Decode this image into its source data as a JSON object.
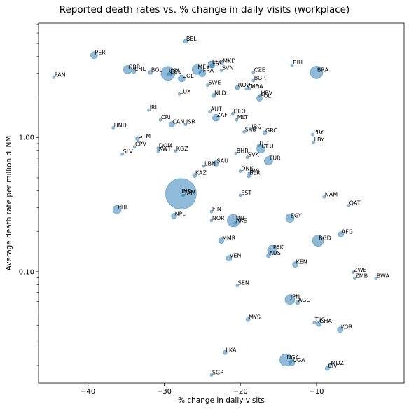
{
  "chart_data": {
    "type": "scatter",
    "title": "Reported death rates vs. % change in daily visits  (workplace)",
    "xlabel": "% change in daily visits",
    "ylabel": "Average death rate per million d_NM",
    "x_scale": "linear",
    "y_scale": "log",
    "xlim": [
      -46.5,
      1.5
    ],
    "ylim": [
      0.0148,
      7.1
    ],
    "x_ticks": [
      -40,
      -30,
      -20,
      -10
    ],
    "x_tick_labels": [
      "−40",
      "−30",
      "−20",
      "−10"
    ],
    "y_ticks": [
      1.0,
      0.1
    ],
    "y_tick_labels": [
      "1.00",
      "0.10"
    ],
    "marker_color": "#1f77b4",
    "points": [
      {
        "label": "BEL",
        "x": -27.2,
        "y": 5.2,
        "size": 3
      },
      {
        "label": "PER",
        "x": -39.2,
        "y": 4.1,
        "size": 5
      },
      {
        "label": "PAN",
        "x": -44.5,
        "y": 2.8,
        "size": 2
      },
      {
        "label": "GBR",
        "x": -34.8,
        "y": 3.2,
        "size": 6
      },
      {
        "label": "CHL",
        "x": -34.0,
        "y": 3.1,
        "size": 3
      },
      {
        "label": "BOL",
        "x": -31.8,
        "y": 3.05,
        "size": 3
      },
      {
        "label": "USA",
        "x": -29.5,
        "y": 3.0,
        "size": 10
      },
      {
        "label": "ECU",
        "x": -29.3,
        "y": 2.95,
        "size": 3
      },
      {
        "label": "COL",
        "x": -27.7,
        "y": 2.75,
        "size": 5
      },
      {
        "label": "MEX",
        "x": -25.7,
        "y": 3.2,
        "size": 7
      },
      {
        "label": "FRA",
        "x": -25.0,
        "y": 3.0,
        "size": 5
      },
      {
        "label": "ESP",
        "x": -23.8,
        "y": 3.5,
        "size": 5
      },
      {
        "label": "ITA",
        "x": -23.7,
        "y": 3.4,
        "size": 3
      },
      {
        "label": "MKD",
        "x": -22.4,
        "y": 3.55,
        "size": 2
      },
      {
        "label": "SVN",
        "x": -22.5,
        "y": 3.15,
        "size": 2
      },
      {
        "label": "SWE",
        "x": -24.3,
        "y": 2.45,
        "size": 2
      },
      {
        "label": "CZE",
        "x": -18.3,
        "y": 3.05,
        "size": 2
      },
      {
        "label": "BGR",
        "x": -18.3,
        "y": 2.65,
        "size": 2
      },
      {
        "label": "ROU",
        "x": -20.4,
        "y": 2.35,
        "size": 3
      },
      {
        "label": "CHE",
        "x": -19.2,
        "y": 2.3,
        "size": 2
      },
      {
        "label": "MDA",
        "x": -18.8,
        "y": 2.3,
        "size": 2
      },
      {
        "label": "HRV",
        "x": -17.4,
        "y": 2.05,
        "size": 2
      },
      {
        "label": "POL",
        "x": -17.5,
        "y": 1.95,
        "size": 4
      },
      {
        "label": "BIH",
        "x": -13.2,
        "y": 3.45,
        "size": 2
      },
      {
        "label": "BRA",
        "x": -10.0,
        "y": 3.05,
        "size": 9
      },
      {
        "label": "LUX",
        "x": -28.0,
        "y": 2.1,
        "size": 2
      },
      {
        "label": "NLD",
        "x": -23.5,
        "y": 2.05,
        "size": 3
      },
      {
        "label": "IRL",
        "x": -32.0,
        "y": 1.6,
        "size": 2
      },
      {
        "label": "AUT",
        "x": -24.0,
        "y": 1.55,
        "size": 2
      },
      {
        "label": "GEO",
        "x": -21.0,
        "y": 1.5,
        "size": 2
      },
      {
        "label": "ZAF",
        "x": -23.2,
        "y": 1.4,
        "size": 5
      },
      {
        "label": "MLT",
        "x": -20.5,
        "y": 1.35,
        "size": 2
      },
      {
        "label": "CRI",
        "x": -30.5,
        "y": 1.35,
        "size": 2
      },
      {
        "label": "CAN",
        "x": -29.0,
        "y": 1.25,
        "size": 4
      },
      {
        "label": "ISR",
        "x": -27.2,
        "y": 1.25,
        "size": 2
      },
      {
        "label": "HND",
        "x": -36.7,
        "y": 1.18,
        "size": 2
      },
      {
        "label": "SRB",
        "x": -19.5,
        "y": 1.1,
        "size": 2
      },
      {
        "label": "IRQ",
        "x": -18.6,
        "y": 1.15,
        "size": 2
      },
      {
        "label": "GRC",
        "x": -16.8,
        "y": 1.08,
        "size": 3
      },
      {
        "label": "PRY",
        "x": -10.5,
        "y": 1.05,
        "size": 2
      },
      {
        "label": "GTM",
        "x": -33.5,
        "y": 0.98,
        "size": 3
      },
      {
        "label": "LBY",
        "x": -10.4,
        "y": 0.92,
        "size": 2
      },
      {
        "label": "ITU",
        "x": -17.6,
        "y": 0.87,
        "size": 2
      },
      {
        "label": "DEU",
        "x": -17.3,
        "y": 0.82,
        "size": 6
      },
      {
        "label": "CPV",
        "x": -33.9,
        "y": 0.85,
        "size": 2
      },
      {
        "label": "DOM",
        "x": -30.8,
        "y": 0.83,
        "size": 2
      },
      {
        "label": "KWT",
        "x": -30.8,
        "y": 0.79,
        "size": 2
      },
      {
        "label": "KGZ",
        "x": -28.5,
        "y": 0.79,
        "size": 2
      },
      {
        "label": "SLV",
        "x": -35.5,
        "y": 0.75,
        "size": 2
      },
      {
        "label": "BHR",
        "x": -20.6,
        "y": 0.76,
        "size": 2
      },
      {
        "label": "SVK",
        "x": -19.1,
        "y": 0.71,
        "size": 2
      },
      {
        "label": "TUR",
        "x": -16.3,
        "y": 0.67,
        "size": 6
      },
      {
        "label": "SAU",
        "x": -23.2,
        "y": 0.64,
        "size": 4
      },
      {
        "label": "LBN",
        "x": -24.8,
        "y": 0.61,
        "size": 2
      },
      {
        "label": "DNK",
        "x": -20.0,
        "y": 0.56,
        "size": 2
      },
      {
        "label": "BLR",
        "x": -18.9,
        "y": 0.52,
        "size": 3
      },
      {
        "label": "SVJ",
        "x": -18.8,
        "y": 0.54,
        "size": 2
      },
      {
        "label": "KAZ",
        "x": -26.0,
        "y": 0.52,
        "size": 3
      },
      {
        "label": "IND",
        "x": -27.8,
        "y": 0.38,
        "size": 22
      },
      {
        "label": "TAM",
        "x": -27.5,
        "y": 0.37,
        "size": 2
      },
      {
        "label": "EST",
        "x": -20.0,
        "y": 0.37,
        "size": 2
      },
      {
        "label": "NAM",
        "x": -9.0,
        "y": 0.36,
        "size": 2
      },
      {
        "label": "QAT",
        "x": -5.8,
        "y": 0.31,
        "size": 2
      },
      {
        "label": "PHL",
        "x": -36.2,
        "y": 0.29,
        "size": 6
      },
      {
        "label": "FIN",
        "x": -23.8,
        "y": 0.28,
        "size": 2
      },
      {
        "label": "NPL",
        "x": -28.7,
        "y": 0.26,
        "size": 4
      },
      {
        "label": "EGY",
        "x": -13.5,
        "y": 0.25,
        "size": 6
      },
      {
        "label": "IDN",
        "x": -20.9,
        "y": 0.24,
        "size": 9
      },
      {
        "label": "ARE",
        "x": -20.7,
        "y": 0.23,
        "size": 2
      },
      {
        "label": "NOR",
        "x": -23.8,
        "y": 0.24,
        "size": 2
      },
      {
        "label": "AFG",
        "x": -6.8,
        "y": 0.19,
        "size": 4
      },
      {
        "label": "MMR",
        "x": -22.5,
        "y": 0.17,
        "size": 4
      },
      {
        "label": "BGD",
        "x": -9.8,
        "y": 0.17,
        "size": 8
      },
      {
        "label": "PAK",
        "x": -15.8,
        "y": 0.145,
        "size": 7
      },
      {
        "label": "AUS",
        "x": -16.3,
        "y": 0.132,
        "size": 3
      },
      {
        "label": "VEN",
        "x": -21.5,
        "y": 0.126,
        "size": 4
      },
      {
        "label": "KEN",
        "x": -12.8,
        "y": 0.113,
        "size": 4
      },
      {
        "label": "ZWE",
        "x": -5.2,
        "y": 0.099,
        "size": 2
      },
      {
        "label": "ZMB",
        "x": -5.0,
        "y": 0.089,
        "size": 2
      },
      {
        "label": "BWA",
        "x": -2.2,
        "y": 0.089,
        "size": 2
      },
      {
        "label": "SEN",
        "x": -20.4,
        "y": 0.079,
        "size": 2
      },
      {
        "label": "JPN",
        "x": -13.5,
        "y": 0.062,
        "size": 7
      },
      {
        "label": "AGO",
        "x": -12.5,
        "y": 0.059,
        "size": 3
      },
      {
        "label": "MYS",
        "x": -19.0,
        "y": 0.044,
        "size": 3
      },
      {
        "label": "TJK",
        "x": -10.3,
        "y": 0.042,
        "size": 2
      },
      {
        "label": "GHA",
        "x": -9.7,
        "y": 0.041,
        "size": 4
      },
      {
        "label": "KOR",
        "x": -6.9,
        "y": 0.037,
        "size": 4
      },
      {
        "label": "LKA",
        "x": -22.0,
        "y": 0.025,
        "size": 3
      },
      {
        "label": "NGA",
        "x": -14.0,
        "y": 0.022,
        "size": 9
      },
      {
        "label": "UGA",
        "x": -13.2,
        "y": 0.021,
        "size": 4
      },
      {
        "label": "CIV",
        "x": -8.6,
        "y": 0.019,
        "size": 3
      },
      {
        "label": "MOZ",
        "x": -8.2,
        "y": 0.02,
        "size": 2
      },
      {
        "label": "SGP",
        "x": -23.8,
        "y": 0.017,
        "size": 2
      }
    ]
  }
}
